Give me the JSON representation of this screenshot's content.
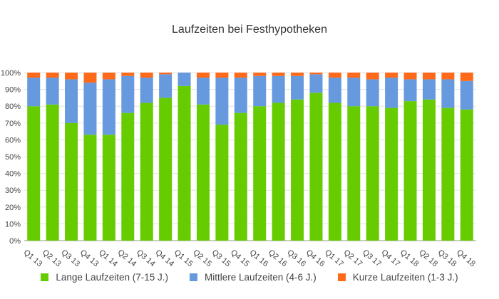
{
  "chart_data": {
    "type": "bar",
    "stacked": true,
    "title": "Laufzeiten bei Festhypotheken",
    "categories": [
      "Q1 13",
      "Q2 13",
      "Q3 13",
      "Q4 13",
      "Q1 14",
      "Q2 14",
      "Q3 14",
      "Q4 14",
      "Q1 15",
      "Q2 15",
      "Q3 15",
      "Q4 15",
      "Q1 16",
      "Q2 16",
      "Q3 16",
      "Q4 16",
      "Q1 17",
      "Q2 17",
      "Q3 17",
      "Q4 17",
      "Q1 18",
      "Q2 18",
      "Q3 18",
      "Q4 18"
    ],
    "ylim": [
      0,
      100
    ],
    "yticks": [
      "0%",
      "10%",
      "20%",
      "30%",
      "40%",
      "50%",
      "60%",
      "70%",
      "80%",
      "90%",
      "100%"
    ],
    "grid": true,
    "legend_position": "bottom",
    "series": [
      {
        "name": "Lange Laufzeiten (7-15 J.)",
        "color": "#66cc00",
        "values": [
          80,
          81,
          70,
          63,
          63,
          76,
          82,
          85,
          92,
          81,
          69,
          76,
          80,
          82,
          84,
          88,
          82,
          80,
          80,
          79,
          83,
          84,
          79,
          78
        ]
      },
      {
        "name": "Mittlere Laufzeiten (4-6 J.)",
        "color": "#6699dd",
        "values": [
          17,
          16,
          26,
          31,
          33,
          22,
          15,
          14,
          8,
          16,
          28,
          21,
          18,
          16,
          14,
          11,
          15,
          17,
          16,
          18,
          13,
          12,
          17,
          17
        ]
      },
      {
        "name": "Kurze Laufzeiten (1-3 J.)",
        "color": "#ff6a1a",
        "values": [
          3,
          3,
          4,
          6,
          4,
          2,
          3,
          1,
          0,
          3,
          3,
          3,
          2,
          2,
          2,
          1,
          3,
          3,
          4,
          3,
          4,
          4,
          4,
          5
        ]
      }
    ]
  }
}
